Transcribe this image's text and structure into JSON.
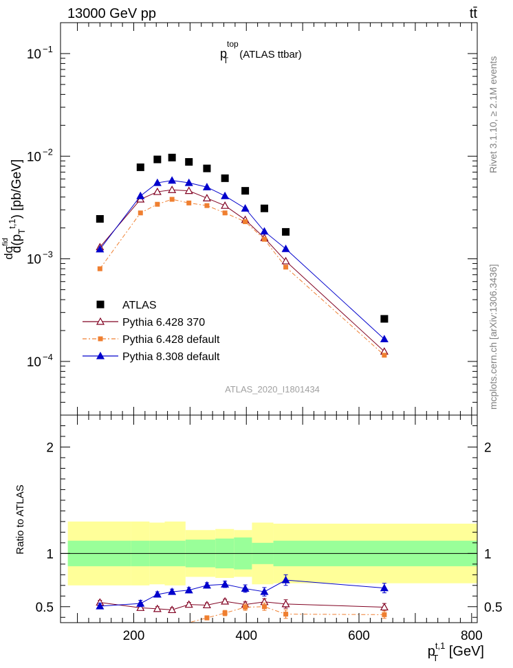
{
  "header": {
    "left": "13000 GeV pp",
    "right": "tt̄"
  },
  "side_labels": {
    "rivet": "Rivet 3.1.10, ≥ 2.1M events",
    "source": "mcplots.cern.ch [arXiv:1306.3436]"
  },
  "chart_data": [
    {
      "type": "scatter",
      "panel": "main",
      "title": "p_T^top (ATLAS ttbar)",
      "title_base": "p",
      "title_sub": "T",
      "title_sup": "top",
      "title_rest": " (ATLAS ttbar)",
      "watermark": "ATLAS_2020_I1801434",
      "yscale": "log",
      "ylabel": "dσ^fid / d(p_T^t,1) [pb/GeV]",
      "ylim": [
        3e-05,
        0.2
      ],
      "xlim": [
        70,
        810
      ],
      "ytick_labels": [
        {
          "value": 0.0001,
          "label": "10",
          "exp": "−4"
        },
        {
          "value": 0.001,
          "label": "10",
          "exp": "−3"
        },
        {
          "value": 0.01,
          "label": "10",
          "exp": "−2"
        },
        {
          "value": 0.1,
          "label": "10",
          "exp": "−1"
        }
      ],
      "legend_placement": "bottom-left",
      "series": [
        {
          "name": "ATLAS",
          "color": "#000000",
          "marker": "square",
          "x": [
            140,
            212,
            242,
            268,
            298,
            330,
            362,
            398,
            432,
            470,
            645
          ],
          "y": [
            0.00245,
            0.0078,
            0.0093,
            0.0097,
            0.0088,
            0.0076,
            0.0061,
            0.0046,
            0.0031,
            0.00183,
            0.00026
          ]
        },
        {
          "name": "Pythia 6.428 370",
          "color": "#800020",
          "marker": "triangle-open",
          "line": "solid",
          "x": [
            140,
            212,
            242,
            268,
            298,
            330,
            362,
            398,
            432,
            470,
            645
          ],
          "y": [
            0.0013,
            0.0038,
            0.0045,
            0.0047,
            0.0046,
            0.0039,
            0.0033,
            0.0024,
            0.0016,
            0.00095,
            0.000125
          ]
        },
        {
          "name": "Pythia 6.428 default",
          "color": "#ef7f30",
          "marker": "square-small",
          "line": "dashdot",
          "x": [
            140,
            212,
            242,
            268,
            298,
            330,
            362,
            398,
            432,
            470,
            645
          ],
          "y": [
            0.0008,
            0.0028,
            0.0034,
            0.0038,
            0.0035,
            0.0033,
            0.0028,
            0.0023,
            0.00155,
            0.00083,
            0.000115
          ]
        },
        {
          "name": "Pythia 8.308 default",
          "color": "#0000cc",
          "marker": "triangle",
          "line": "solid",
          "x": [
            140,
            212,
            242,
            268,
            298,
            330,
            362,
            398,
            432,
            470,
            645
          ],
          "y": [
            0.00124,
            0.0041,
            0.0055,
            0.0058,
            0.0055,
            0.005,
            0.0041,
            0.0031,
            0.00185,
            0.00125,
            0.000165
          ]
        }
      ]
    },
    {
      "type": "scatter",
      "panel": "ratio",
      "xlabel": "p_T^t,1 [GeV]",
      "xlabel_base": "p",
      "xlabel_sub": "T",
      "xlabel_sup": "t,1",
      "xlabel_rest": " [GeV]",
      "ylabel": "Ratio to ATLAS",
      "xlim": [
        70,
        810
      ],
      "ylim": [
        0.35,
        2.3
      ],
      "xtick_labels": [
        "200",
        "400",
        "600",
        "800"
      ],
      "xtick_values": [
        200,
        400,
        600,
        800
      ],
      "ytick_labels": [
        "0.5",
        "1",
        "2"
      ],
      "ytick_values": [
        0.5,
        1,
        2
      ],
      "bins": [
        {
          "x0": 83,
          "x1": 195,
          "inner": 0.12,
          "outer": 0.3
        },
        {
          "x0": 195,
          "x1": 228,
          "inner": 0.12,
          "outer": 0.3
        },
        {
          "x0": 228,
          "x1": 255,
          "inner": 0.12,
          "outer": 0.29
        },
        {
          "x0": 255,
          "x1": 292,
          "inner": 0.12,
          "outer": 0.3
        },
        {
          "x0": 292,
          "x1": 345,
          "inner": 0.13,
          "outer": 0.22
        },
        {
          "x0": 345,
          "x1": 378,
          "inner": 0.14,
          "outer": 0.23
        },
        {
          "x0": 378,
          "x1": 410,
          "inner": 0.15,
          "outer": 0.22
        },
        {
          "x0": 410,
          "x1": 448,
          "inner": 0.1,
          "outer": 0.29
        },
        {
          "x0": 448,
          "x1": 810,
          "inner": 0.12,
          "outer": 0.28
        }
      ],
      "band_colors": {
        "inner": "#99ff99",
        "outer": "#ffff99"
      },
      "series": [
        {
          "name": "Pythia 6.428 370",
          "color": "#800020",
          "marker": "triangle-open",
          "x": [
            140,
            212,
            242,
            268,
            298,
            330,
            362,
            398,
            432,
            470,
            645
          ],
          "y": [
            0.54,
            0.49,
            0.48,
            0.47,
            0.52,
            0.515,
            0.55,
            0.52,
            0.545,
            0.525,
            0.495
          ],
          "err": [
            0.02,
            0.02,
            0.02,
            0.02,
            0.02,
            0.02,
            0.02,
            0.025,
            0.03,
            0.04,
            0.035
          ]
        },
        {
          "name": "Pythia 6.428 default",
          "color": "#ef7f30",
          "marker": "square-small",
          "x": [
            268,
            298,
            330,
            362,
            398,
            432,
            470,
            645
          ],
          "y": [
            0.3,
            0.34,
            0.395,
            0.44,
            0.495,
            0.5,
            0.43,
            0.425
          ],
          "err": [
            0.02,
            0.02,
            0.02,
            0.025,
            0.03,
            0.035,
            0.04,
            0.035
          ]
        },
        {
          "name": "Pythia 8.308 default",
          "color": "#0000cc",
          "marker": "triangle",
          "x": [
            140,
            212,
            242,
            268,
            298,
            330,
            362,
            398,
            432,
            470,
            645
          ],
          "y": [
            0.505,
            0.53,
            0.615,
            0.64,
            0.655,
            0.7,
            0.71,
            0.67,
            0.64,
            0.75,
            0.675
          ],
          "err": [
            0.025,
            0.03,
            0.025,
            0.025,
            0.025,
            0.025,
            0.03,
            0.035,
            0.04,
            0.05,
            0.045
          ]
        }
      ]
    }
  ]
}
